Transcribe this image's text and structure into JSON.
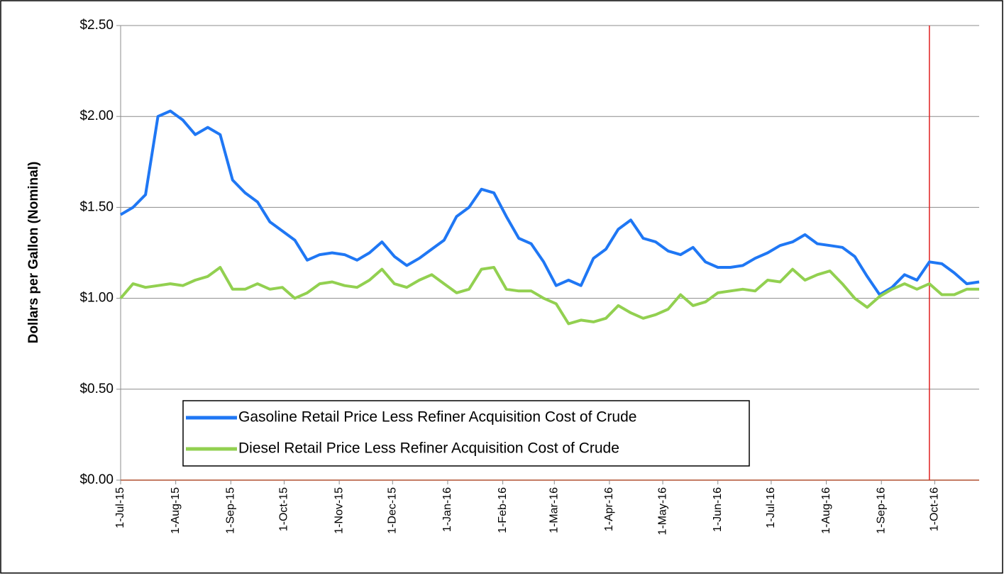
{
  "chart_data": {
    "type": "line",
    "ylabel": "Dollars per Gallon (Nominal)",
    "x": [
      "2015-07-01",
      "2015-07-08",
      "2015-07-15",
      "2015-07-22",
      "2015-07-29",
      "2015-08-05",
      "2015-08-12",
      "2015-08-19",
      "2015-08-26",
      "2015-09-02",
      "2015-09-09",
      "2015-09-16",
      "2015-09-23",
      "2015-09-30",
      "2015-10-07",
      "2015-10-14",
      "2015-10-21",
      "2015-10-28",
      "2015-11-04",
      "2015-11-11",
      "2015-11-18",
      "2015-11-25",
      "2015-12-02",
      "2015-12-09",
      "2015-12-16",
      "2015-12-23",
      "2015-12-30",
      "2016-01-06",
      "2016-01-13",
      "2016-01-20",
      "2016-01-27",
      "2016-02-03",
      "2016-02-10",
      "2016-02-17",
      "2016-02-24",
      "2016-03-02",
      "2016-03-09",
      "2016-03-16",
      "2016-03-23",
      "2016-03-30",
      "2016-04-06",
      "2016-04-13",
      "2016-04-20",
      "2016-04-27",
      "2016-05-04",
      "2016-05-11",
      "2016-05-18",
      "2016-05-25",
      "2016-06-01",
      "2016-06-08",
      "2016-06-15",
      "2016-06-22",
      "2016-06-29",
      "2016-07-06",
      "2016-07-13",
      "2016-07-20",
      "2016-07-27",
      "2016-08-03",
      "2016-08-10",
      "2016-08-17",
      "2016-08-24",
      "2016-08-31",
      "2016-09-07",
      "2016-09-14",
      "2016-09-21",
      "2016-09-28",
      "2016-10-05",
      "2016-10-12",
      "2016-10-19",
      "2016-10-26"
    ],
    "series": [
      {
        "name": "Gasoline Retail Price Less Refiner Acquisition Cost of Crude",
        "color": "#1f77f4",
        "values": [
          1.46,
          1.5,
          1.57,
          2.0,
          2.03,
          1.98,
          1.9,
          1.94,
          1.9,
          1.65,
          1.58,
          1.53,
          1.42,
          1.37,
          1.32,
          1.21,
          1.24,
          1.25,
          1.24,
          1.21,
          1.25,
          1.31,
          1.23,
          1.18,
          1.22,
          1.27,
          1.32,
          1.45,
          1.5,
          1.6,
          1.58,
          1.45,
          1.33,
          1.3,
          1.2,
          1.07,
          1.1,
          1.07,
          1.22,
          1.27,
          1.38,
          1.43,
          1.33,
          1.31,
          1.26,
          1.24,
          1.28,
          1.2,
          1.17,
          1.17,
          1.18,
          1.22,
          1.25,
          1.29,
          1.31,
          1.35,
          1.3,
          1.29,
          1.28,
          1.23,
          1.12,
          1.02,
          1.06,
          1.13,
          1.1,
          1.2,
          1.19,
          1.14,
          1.08,
          1.09
        ]
      },
      {
        "name": "Diesel Retail Price Less Refiner Acquisition Cost of Crude",
        "color": "#92d050",
        "values": [
          1.0,
          1.08,
          1.06,
          1.07,
          1.08,
          1.07,
          1.1,
          1.12,
          1.17,
          1.05,
          1.05,
          1.08,
          1.05,
          1.06,
          1.0,
          1.03,
          1.08,
          1.09,
          1.07,
          1.06,
          1.1,
          1.16,
          1.08,
          1.06,
          1.1,
          1.13,
          1.08,
          1.03,
          1.05,
          1.16,
          1.17,
          1.05,
          1.04,
          1.04,
          1.0,
          0.97,
          0.86,
          0.88,
          0.87,
          0.89,
          0.96,
          0.92,
          0.89,
          0.91,
          0.94,
          1.02,
          0.96,
          0.98,
          1.03,
          1.04,
          1.05,
          1.04,
          1.1,
          1.09,
          1.16,
          1.1,
          1.13,
          1.15,
          1.08,
          1.0,
          0.95,
          1.01,
          1.05,
          1.08,
          1.05,
          1.08,
          1.02,
          1.02,
          1.05,
          1.05
        ]
      }
    ],
    "xlim": [
      "2015-07-01",
      "2016-10-26"
    ],
    "xticks": [
      {
        "value": "2015-07-01",
        "label": "1-Jul-15"
      },
      {
        "value": "2015-08-01",
        "label": "1-Aug-15"
      },
      {
        "value": "2015-09-01",
        "label": "1-Sep-15"
      },
      {
        "value": "2015-10-01",
        "label": "1-Oct-15"
      },
      {
        "value": "2015-11-01",
        "label": "1-Nov-15"
      },
      {
        "value": "2015-12-01",
        "label": "1-Dec-15"
      },
      {
        "value": "2016-01-01",
        "label": "1-Jan-16"
      },
      {
        "value": "2016-02-01",
        "label": "1-Feb-16"
      },
      {
        "value": "2016-03-01",
        "label": "1-Mar-16"
      },
      {
        "value": "2016-04-01",
        "label": "1-Apr-16"
      },
      {
        "value": "2016-05-01",
        "label": "1-May-16"
      },
      {
        "value": "2016-06-01",
        "label": "1-Jun-16"
      },
      {
        "value": "2016-07-01",
        "label": "1-Jul-16"
      },
      {
        "value": "2016-08-01",
        "label": "1-Aug-16"
      },
      {
        "value": "2016-09-01",
        "label": "1-Sep-16"
      },
      {
        "value": "2016-10-01",
        "label": "1-Oct-16"
      }
    ],
    "ylim": [
      0,
      2.5
    ],
    "yticks": [
      {
        "value": 0,
        "label": "$0.00"
      },
      {
        "value": 0.5,
        "label": "$0.50"
      },
      {
        "value": 1,
        "label": "$1.00"
      },
      {
        "value": 1.5,
        "label": "$1.50"
      },
      {
        "value": 2,
        "label": "$2.00"
      },
      {
        "value": 2.5,
        "label": "$2.50"
      }
    ],
    "grid": true,
    "legend": "lower left",
    "vline": {
      "x": "2016-09-28",
      "color": "#e02020"
    }
  }
}
